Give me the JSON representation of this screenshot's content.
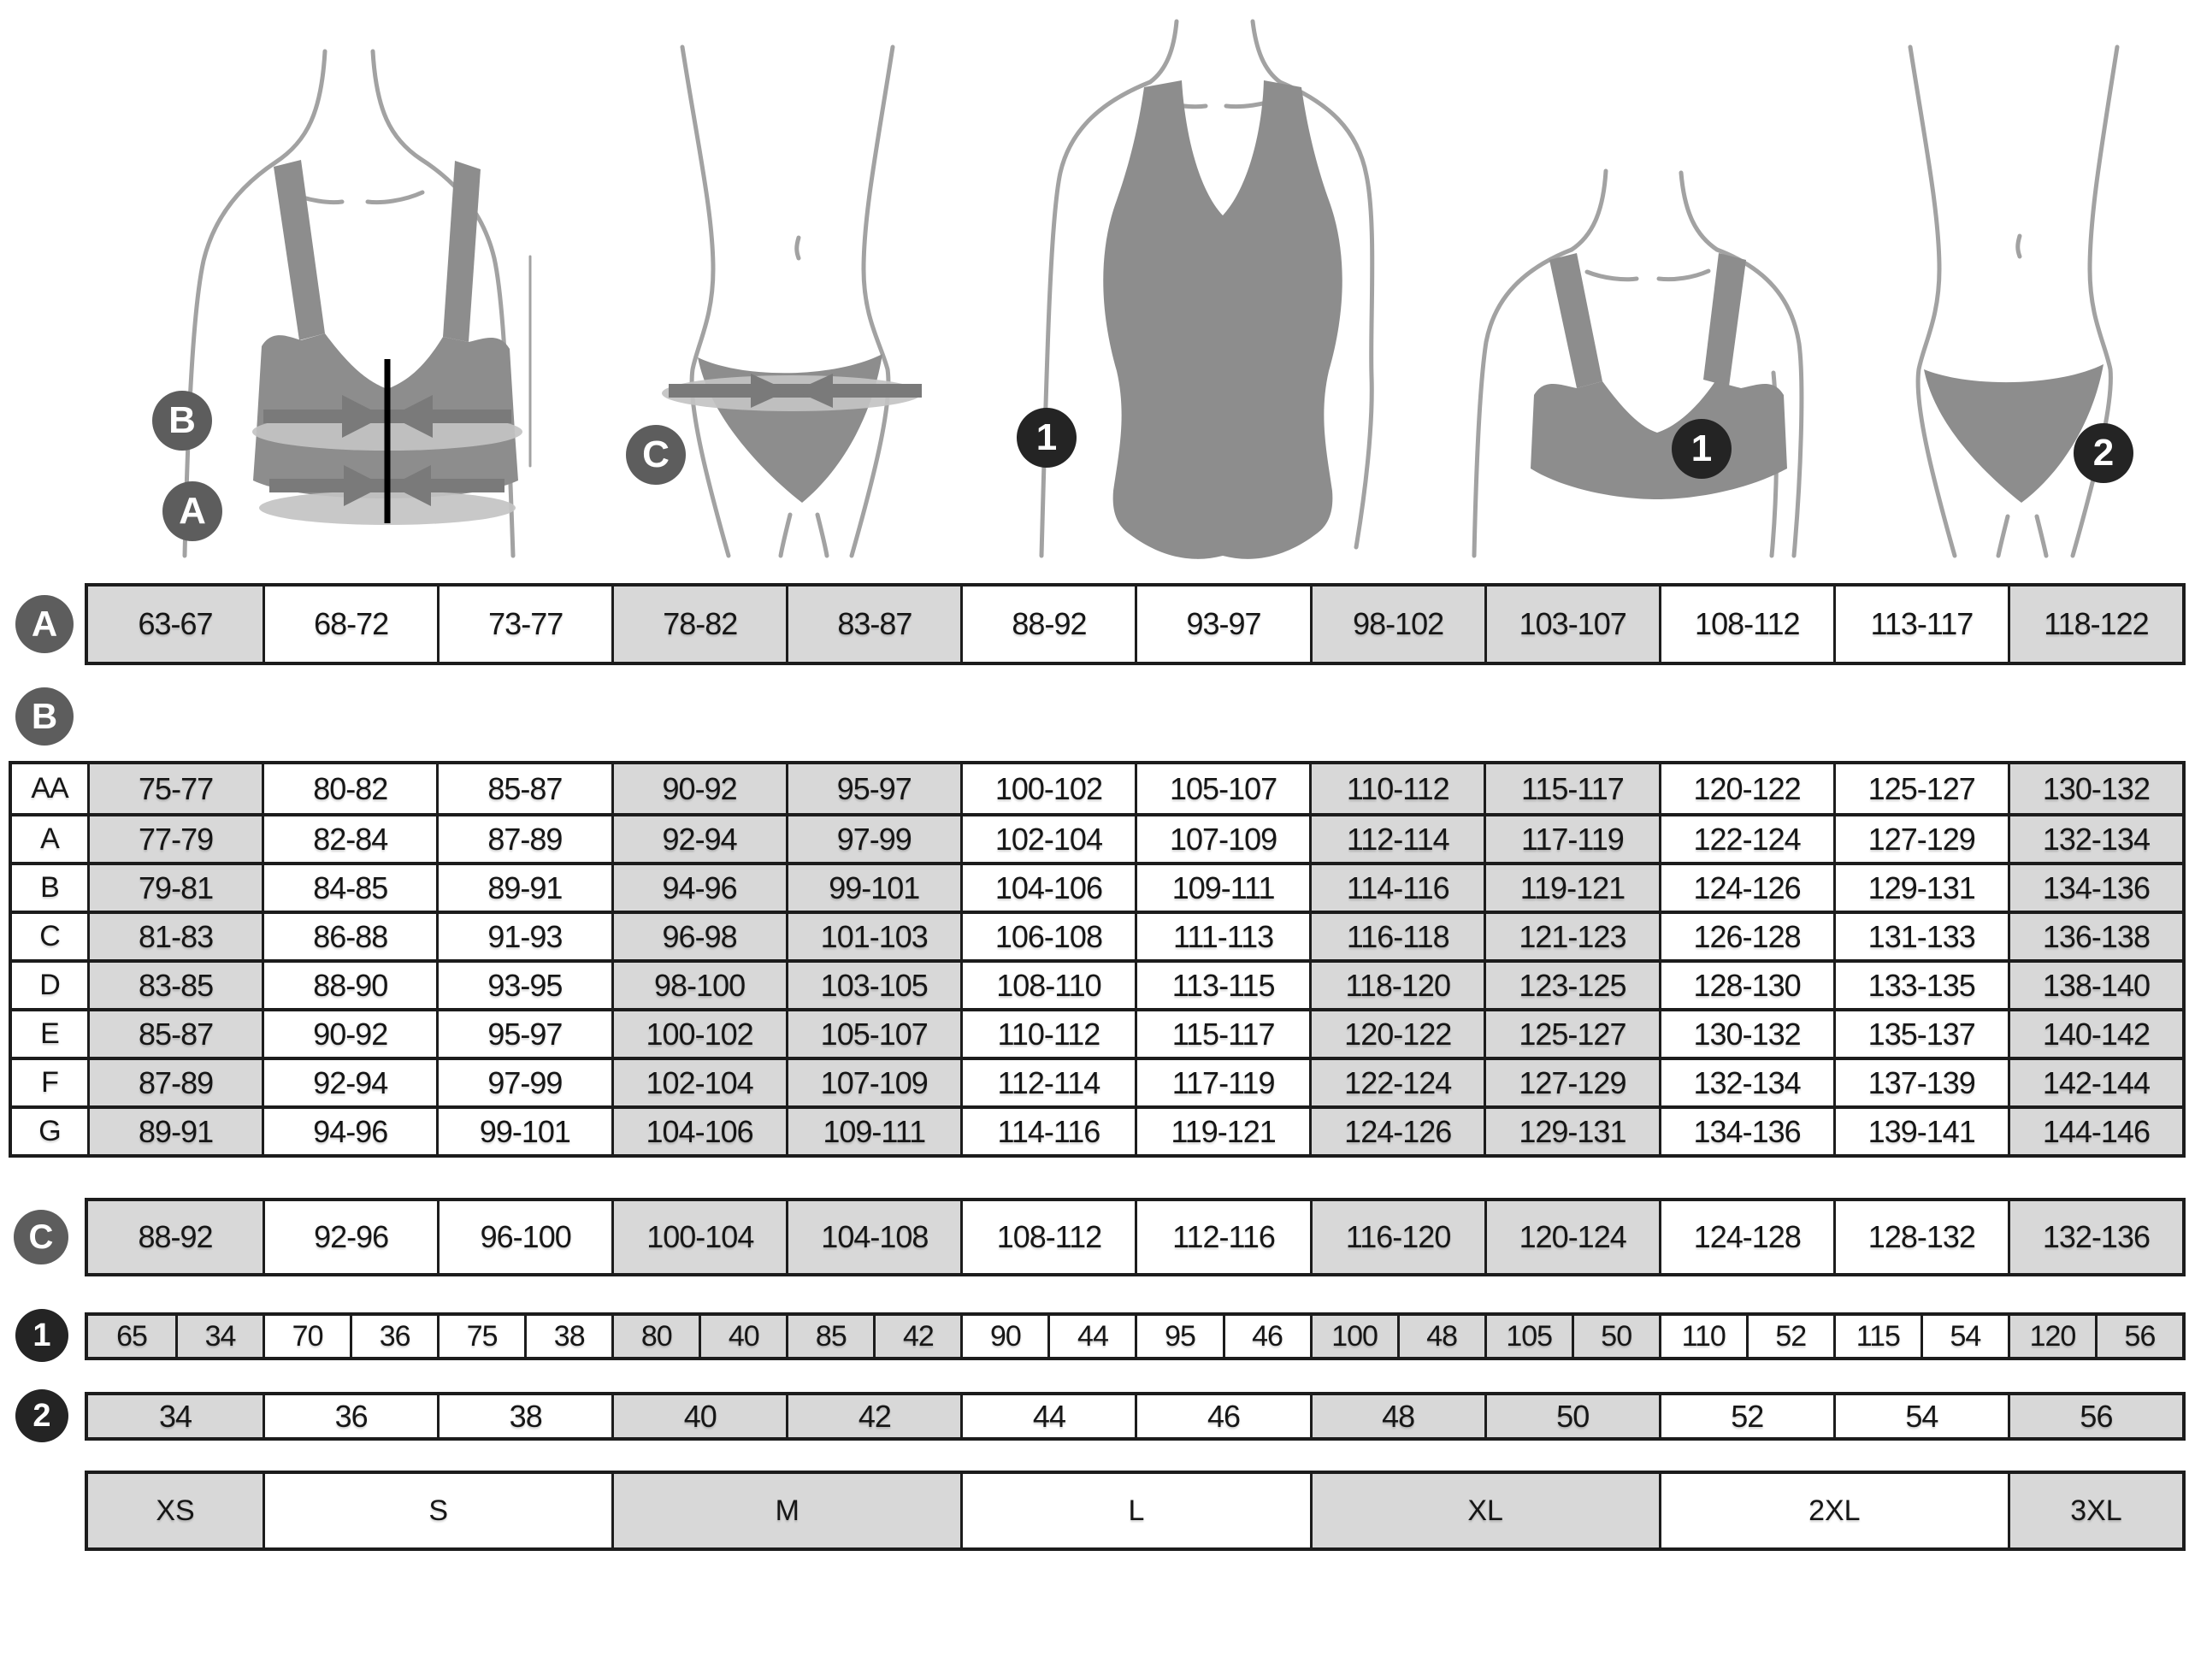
{
  "palette": {
    "cell_gray": "#d8d8d8",
    "cell_white": "#ffffff",
    "border": "#1c1c1c",
    "text": "#161616",
    "badge_gray": "#5d5d5d",
    "badge_black": "#242424",
    "figure_fill": "#8d8d8d",
    "figure_outline": "#a2a2a2",
    "band_dark": "#7a7a7a",
    "band_light": "#c3c3c3"
  },
  "figures": [
    {
      "name": "bra-measurement",
      "badges": [
        "B",
        "A"
      ]
    },
    {
      "name": "briefs-measurement",
      "badges": [
        "C"
      ]
    },
    {
      "name": "swimsuit",
      "badges": [
        "1"
      ]
    },
    {
      "name": "bra",
      "badges": [
        "1"
      ]
    },
    {
      "name": "briefs",
      "badges": [
        "2"
      ]
    }
  ],
  "shading": {
    "gray_columns": [
      0,
      3,
      4,
      7,
      8,
      11
    ]
  },
  "row_a": {
    "label": "A",
    "cells": [
      "63-67",
      "68-72",
      "73-77",
      "78-82",
      "83-87",
      "88-92",
      "93-97",
      "98-102",
      "103-107",
      "108-112",
      "113-117",
      "118-122"
    ]
  },
  "table_b": {
    "label": "B",
    "row_labels": [
      "AA",
      "A",
      "B",
      "C",
      "D",
      "E",
      "F",
      "G"
    ],
    "rows": [
      [
        "75-77",
        "80-82",
        "85-87",
        "90-92",
        "95-97",
        "100-102",
        "105-107",
        "110-112",
        "115-117",
        "120-122",
        "125-127",
        "130-132"
      ],
      [
        "77-79",
        "82-84",
        "87-89",
        "92-94",
        "97-99",
        "102-104",
        "107-109",
        "112-114",
        "117-119",
        "122-124",
        "127-129",
        "132-134"
      ],
      [
        "79-81",
        "84-85",
        "89-91",
        "94-96",
        "99-101",
        "104-106",
        "109-111",
        "114-116",
        "119-121",
        "124-126",
        "129-131",
        "134-136"
      ],
      [
        "81-83",
        "86-88",
        "91-93",
        "96-98",
        "101-103",
        "106-108",
        "111-113",
        "116-118",
        "121-123",
        "126-128",
        "131-133",
        "136-138"
      ],
      [
        "83-85",
        "88-90",
        "93-95",
        "98-100",
        "103-105",
        "108-110",
        "113-115",
        "118-120",
        "123-125",
        "128-130",
        "133-135",
        "138-140"
      ],
      [
        "85-87",
        "90-92",
        "95-97",
        "100-102",
        "105-107",
        "110-112",
        "115-117",
        "120-122",
        "125-127",
        "130-132",
        "135-137",
        "140-142"
      ],
      [
        "87-89",
        "92-94",
        "97-99",
        "102-104",
        "107-109",
        "112-114",
        "117-119",
        "122-124",
        "127-129",
        "132-134",
        "137-139",
        "142-144"
      ],
      [
        "89-91",
        "94-96",
        "99-101",
        "104-106",
        "109-111",
        "114-116",
        "119-121",
        "124-126",
        "129-131",
        "134-136",
        "139-141",
        "144-146"
      ]
    ]
  },
  "row_c": {
    "label": "C",
    "cells": [
      "88-92",
      "92-96",
      "96-100",
      "100-104",
      "104-108",
      "108-112",
      "112-116",
      "116-120",
      "120-124",
      "124-128",
      "128-132",
      "132-136"
    ]
  },
  "row_1": {
    "label": "1",
    "cells": [
      "65",
      "34",
      "70",
      "36",
      "75",
      "38",
      "80",
      "40",
      "85",
      "42",
      "90",
      "44",
      "95",
      "46",
      "100",
      "48",
      "105",
      "50",
      "110",
      "52",
      "115",
      "54",
      "120",
      "56"
    ]
  },
  "row_2": {
    "label": "2",
    "cells": [
      "34",
      "36",
      "38",
      "40",
      "42",
      "44",
      "46",
      "48",
      "50",
      "52",
      "54",
      "56"
    ]
  },
  "sizes": {
    "cells": [
      "XS",
      "S",
      "M",
      "L",
      "XL",
      "2XL",
      "3XL"
    ],
    "spans": [
      1,
      2,
      2,
      2,
      2,
      2,
      1
    ]
  }
}
